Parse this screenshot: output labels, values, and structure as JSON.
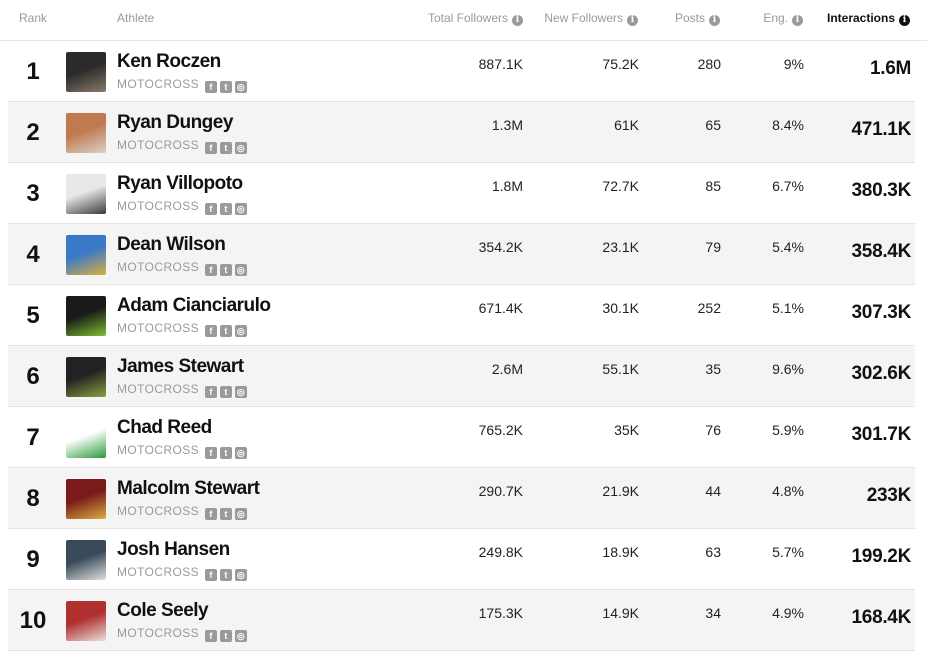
{
  "header": {
    "rank": "Rank",
    "athlete": "Athlete",
    "total_followers": "Total Followers",
    "new_followers": "New Followers",
    "posts": "Posts",
    "eng": "Eng.",
    "interactions": "Interactions"
  },
  "rows": [
    {
      "rank": "1",
      "name": "Ken Roczen",
      "sport": "MOTOCROSS",
      "total": "887.1K",
      "new": "75.2K",
      "posts": "280",
      "eng": "9%",
      "interactions": "1.6M",
      "avatar_colors": [
        "#2b2b2b",
        "#8a7a6a"
      ]
    },
    {
      "rank": "2",
      "name": "Ryan Dungey",
      "sport": "MOTOCROSS",
      "total": "1.3M",
      "new": "61K",
      "posts": "65",
      "eng": "8.4%",
      "interactions": "471.1K",
      "avatar_colors": [
        "#c07a50",
        "#d9d2c8"
      ]
    },
    {
      "rank": "3",
      "name": "Ryan Villopoto",
      "sport": "MOTOCROSS",
      "total": "1.8M",
      "new": "72.7K",
      "posts": "85",
      "eng": "6.7%",
      "interactions": "380.3K",
      "avatar_colors": [
        "#e8e8e8",
        "#3a3a3a"
      ]
    },
    {
      "rank": "4",
      "name": "Dean Wilson",
      "sport": "MOTOCROSS",
      "total": "354.2K",
      "new": "23.1K",
      "posts": "79",
      "eng": "5.4%",
      "interactions": "358.4K",
      "avatar_colors": [
        "#3a78c8",
        "#d8b040"
      ]
    },
    {
      "rank": "5",
      "name": "Adam Cianciarulo",
      "sport": "MOTOCROSS",
      "total": "671.4K",
      "new": "30.1K",
      "posts": "252",
      "eng": "5.1%",
      "interactions": "307.3K",
      "avatar_colors": [
        "#1a1a1a",
        "#7fc030"
      ]
    },
    {
      "rank": "6",
      "name": "James Stewart",
      "sport": "MOTOCROSS",
      "total": "2.6M",
      "new": "55.1K",
      "posts": "35",
      "eng": "9.6%",
      "interactions": "302.6K",
      "avatar_colors": [
        "#222222",
        "#8aa040"
      ]
    },
    {
      "rank": "7",
      "name": "Chad Reed",
      "sport": "MOTOCROSS",
      "total": "765.2K",
      "new": "35K",
      "posts": "76",
      "eng": "5.9%",
      "interactions": "301.7K",
      "avatar_colors": [
        "#ffffff",
        "#2a9a3a"
      ]
    },
    {
      "rank": "8",
      "name": "Malcolm Stewart",
      "sport": "MOTOCROSS",
      "total": "290.7K",
      "new": "21.9K",
      "posts": "44",
      "eng": "4.8%",
      "interactions": "233K",
      "avatar_colors": [
        "#7a1a1a",
        "#d8b040"
      ]
    },
    {
      "rank": "9",
      "name": "Josh Hansen",
      "sport": "MOTOCROSS",
      "total": "249.8K",
      "new": "18.9K",
      "posts": "63",
      "eng": "5.7%",
      "interactions": "199.2K",
      "avatar_colors": [
        "#3a4a5a",
        "#e0e0e0"
      ]
    },
    {
      "rank": "10",
      "name": "Cole Seely",
      "sport": "MOTOCROSS",
      "total": "175.3K",
      "new": "14.9K",
      "posts": "34",
      "eng": "4.9%",
      "interactions": "168.4K",
      "avatar_colors": [
        "#b03030",
        "#e8e0d8"
      ]
    }
  ],
  "social_icons": [
    "facebook-icon",
    "twitter-icon",
    "instagram-icon"
  ],
  "colors": {
    "muted": "#9a9a9a",
    "row_alt": "#f4f4f4",
    "text": "#111111"
  }
}
